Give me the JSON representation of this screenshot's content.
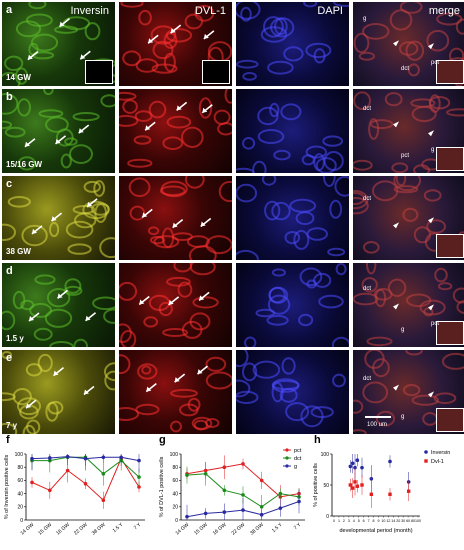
{
  "figure": {
    "columns": [
      "Inversin",
      "DVL-1",
      "DAPI",
      "merge"
    ],
    "rows": [
      {
        "letter": "a",
        "age": "14 GW",
        "colors": [
          "green",
          "red",
          "blue",
          "merge"
        ]
      },
      {
        "letter": "b",
        "age": "15/16 GW",
        "colors": [
          "green",
          "red",
          "blue",
          "merge"
        ]
      },
      {
        "letter": "c",
        "age": "38 GW",
        "colors": [
          "yellow",
          "red",
          "blue",
          "merge"
        ]
      },
      {
        "letter": "d",
        "age": "1.5 y",
        "colors": [
          "green",
          "red",
          "blue",
          "merge"
        ]
      },
      {
        "letter": "e",
        "age": "7 y",
        "colors": [
          "yellow",
          "red",
          "blue",
          "merge"
        ]
      }
    ],
    "merge_labels": {
      "a": [
        "g",
        "dct",
        "pct"
      ],
      "b": [
        "dct",
        "pct",
        "g"
      ],
      "c": [
        "dct"
      ],
      "d": [
        "dct",
        "g",
        "pct"
      ],
      "e": [
        "dct",
        "g"
      ]
    },
    "scale_bar": "100 um"
  },
  "chart_data": [
    {
      "panel": "f",
      "type": "line",
      "ylabel": "% of Inversin positive cells",
      "categories": [
        "14 GW",
        "15 GW",
        "16 GW",
        "22 GW",
        "38 GW",
        "1.5 Y",
        "7 Y"
      ],
      "ylim": [
        0,
        100
      ],
      "yticks": [
        0,
        20,
        40,
        60,
        80,
        100
      ],
      "series": [
        {
          "color": "#e02020",
          "values": [
            57,
            45,
            75,
            55,
            30,
            93,
            50
          ]
        },
        {
          "color": "#1a8a1a",
          "values": [
            90,
            90,
            95,
            95,
            70,
            90,
            65
          ]
        },
        {
          "color": "#2a2aa0",
          "values": [
            93,
            94,
            96,
            93,
            95,
            95,
            90
          ]
        }
      ]
    },
    {
      "panel": "g",
      "type": "line",
      "ylabel": "% of DVL-1 positive cells",
      "categories": [
        "14 GW",
        "15 GW",
        "16 GW",
        "22 GW",
        "38 GW",
        "1.5 Y",
        "7 Y"
      ],
      "ylim": [
        0,
        100
      ],
      "yticks": [
        0,
        20,
        40,
        60,
        80,
        100
      ],
      "legend_position": "top-right",
      "series": [
        {
          "name": "pct",
          "color": "#e02020",
          "values": [
            70,
            75,
            80,
            85,
            60,
            35,
            40
          ]
        },
        {
          "name": "dct",
          "color": "#1a8a1a",
          "values": [
            68,
            70,
            45,
            38,
            20,
            40,
            35
          ]
        },
        {
          "name": "g",
          "color": "#2a2aa0",
          "values": [
            5,
            10,
            12,
            15,
            8,
            18,
            28
          ]
        }
      ]
    },
    {
      "panel": "h",
      "type": "scatter",
      "ylabel": "% of positive cells",
      "xlabel": "developmental period (month)",
      "xticks": [
        "0",
        "1",
        "2",
        "3",
        "4",
        "5",
        "6",
        "7",
        "8",
        "9",
        "10",
        "12",
        "14",
        "20",
        "30",
        "60",
        "80",
        "100"
      ],
      "ylim": [
        0,
        100
      ],
      "yticks": [
        0,
        50,
        100
      ],
      "legend_position": "top-right",
      "series": [
        {
          "name": "Inversin",
          "color": "#2a2aa0",
          "x": [
            3.5,
            4,
            4.5,
            5,
            6,
            8,
            12,
            16
          ],
          "y": [
            80,
            85,
            78,
            90,
            78,
            60,
            88,
            55
          ]
        },
        {
          "name": "Dvl-1",
          "color": "#e02020",
          "x": [
            3.5,
            4,
            4.5,
            5,
            6,
            8,
            12,
            16
          ],
          "y": [
            50,
            45,
            55,
            48,
            50,
            35,
            35,
            40
          ]
        }
      ]
    }
  ]
}
